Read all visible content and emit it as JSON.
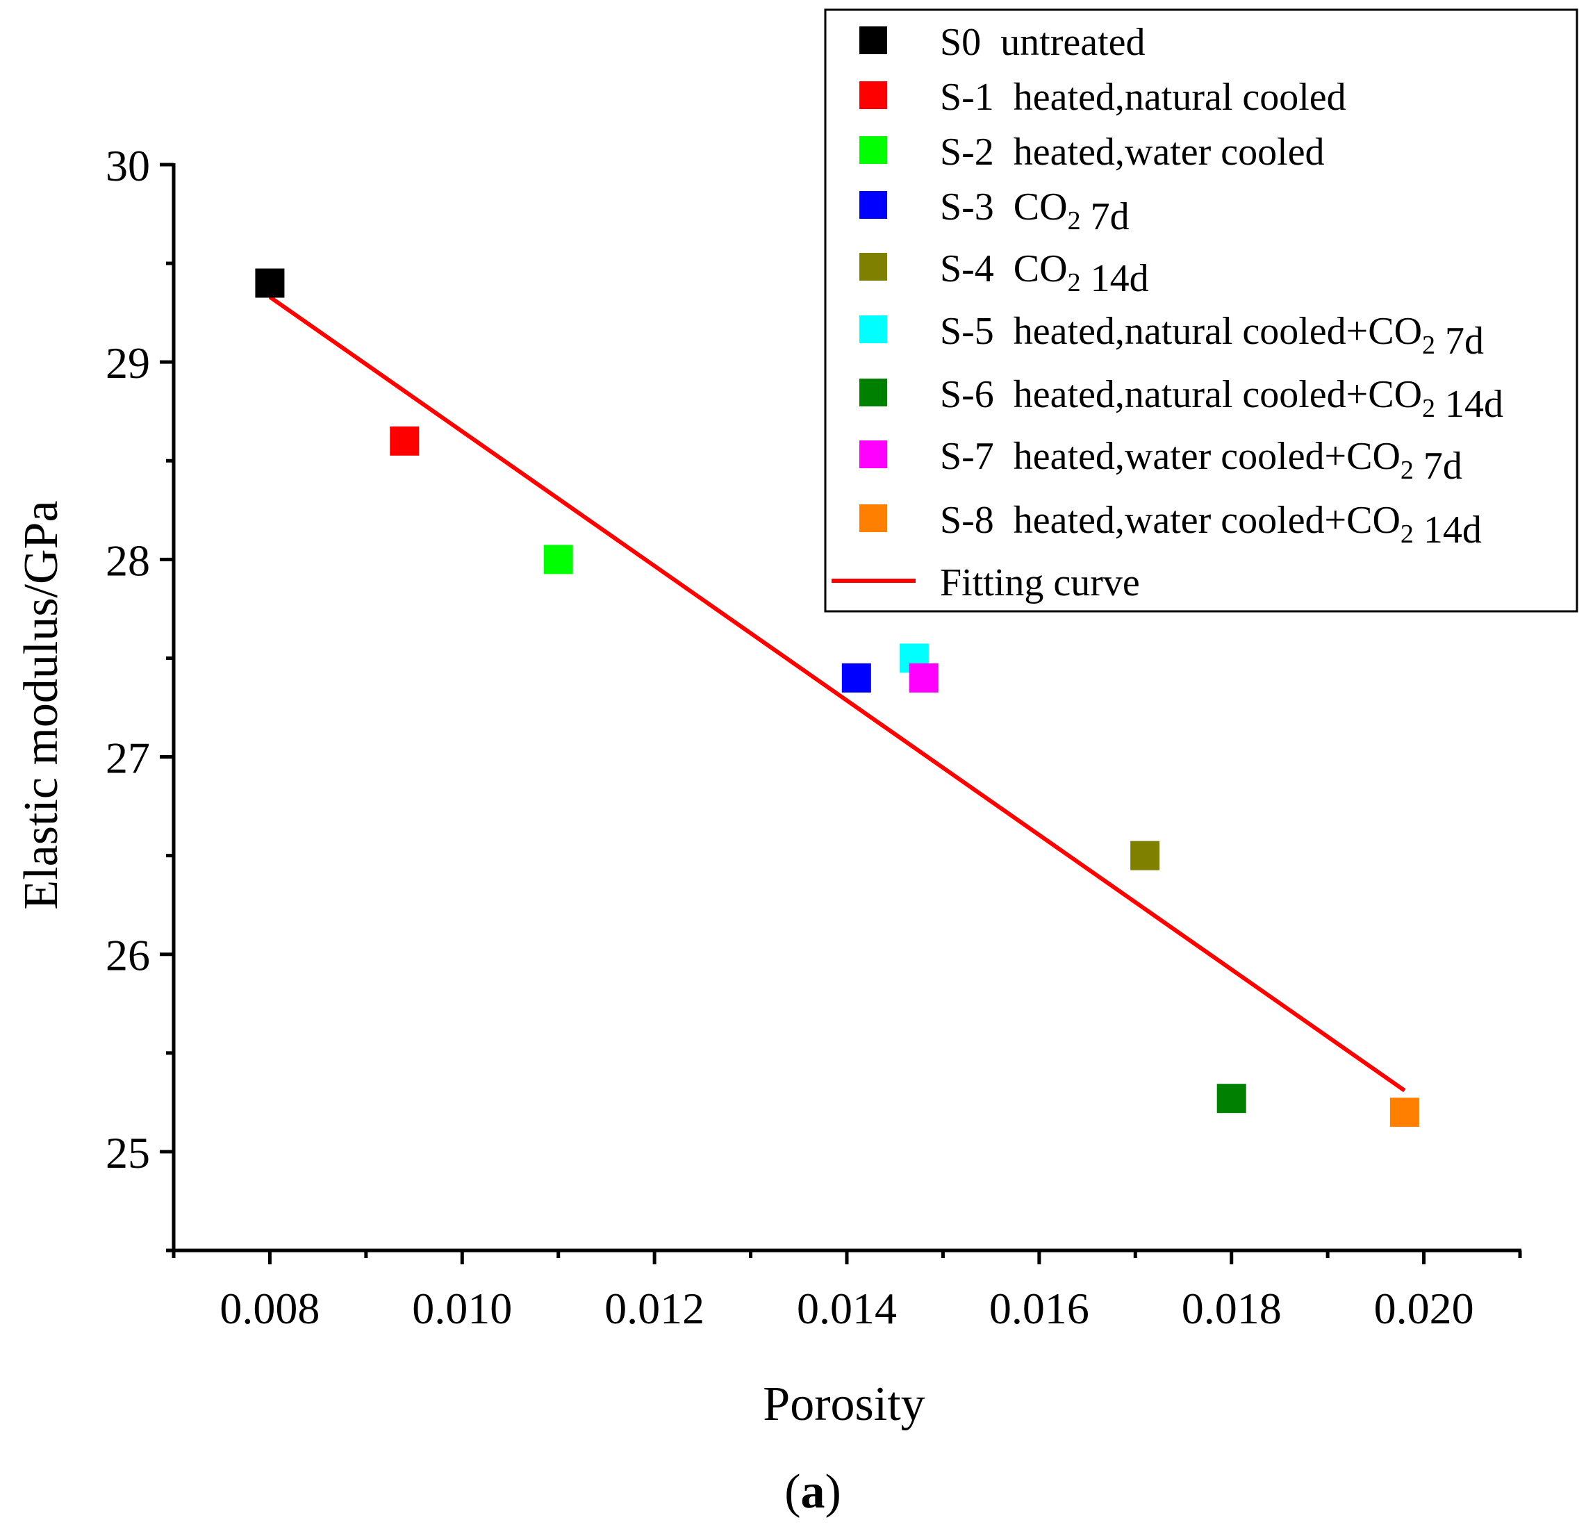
{
  "chart_data": {
    "type": "scatter",
    "title": "",
    "xlabel": "Porosity",
    "ylabel": "Elastic modulus/GPa",
    "caption_letter": "a",
    "xlim": [
      0.007,
      0.021
    ],
    "ylim": [
      24.5,
      30
    ],
    "x_ticks": [
      0.008,
      0.01,
      0.012,
      0.014,
      0.016,
      0.018,
      0.02
    ],
    "x_tick_labels": [
      "0.008",
      "0.010",
      "0.012",
      "0.014",
      "0.016",
      "0.018",
      "0.020"
    ],
    "y_ticks": [
      25,
      26,
      27,
      28,
      29,
      30
    ],
    "y_tick_labels": [
      "25",
      "26",
      "27",
      "28",
      "29",
      "30"
    ],
    "grid": false,
    "legend_position": "top-right",
    "series": [
      {
        "id": "s0",
        "label": "S0  untreated",
        "label_parts": [
          {
            "t": "S0  untreated"
          }
        ],
        "color": "#000000",
        "x": 0.008,
        "y": 29.4
      },
      {
        "id": "s1",
        "label": "S-1  heated,natural cooled",
        "label_parts": [
          {
            "t": "S-1  heated,natural cooled"
          }
        ],
        "color": "#FF0000",
        "x": 0.0094,
        "y": 28.6
      },
      {
        "id": "s2",
        "label": "S-2  heated,water cooled",
        "label_parts": [
          {
            "t": "S-2  heated,water cooled"
          }
        ],
        "color": "#00FF00",
        "x": 0.011,
        "y": 28.0
      },
      {
        "id": "s3",
        "label": "S-3  CO2 7d",
        "label_parts": [
          {
            "t": "S-3  CO"
          },
          {
            "t": "2",
            "sub": true
          },
          {
            "t": " 7d"
          }
        ],
        "color": "#0000FF",
        "x": 0.0141,
        "y": 27.4
      },
      {
        "id": "s4",
        "label": "S-4  CO2 14d",
        "label_parts": [
          {
            "t": "S-4  CO"
          },
          {
            "t": "2",
            "sub": true
          },
          {
            "t": " 14d"
          }
        ],
        "color": "#808000",
        "x": 0.0171,
        "y": 26.5
      },
      {
        "id": "s5",
        "label": "S-5  heated,natural cooled+CO2 7d",
        "label_parts": [
          {
            "t": "S-5  heated,natural cooled+CO"
          },
          {
            "t": "2",
            "sub": true
          },
          {
            "t": " 7d"
          }
        ],
        "color": "#00FFFF",
        "x": 0.0147,
        "y": 27.5
      },
      {
        "id": "s6",
        "label": "S-6  heated,natural cooled+CO2 14d",
        "label_parts": [
          {
            "t": "S-6  heated,natural cooled+CO"
          },
          {
            "t": "2",
            "sub": true
          },
          {
            "t": " 14d"
          }
        ],
        "color": "#008000",
        "x": 0.018,
        "y": 25.27
      },
      {
        "id": "s7",
        "label": "S-7  heated,water cooled+CO2 7d",
        "label_parts": [
          {
            "t": "S-7  heated,water cooled+CO"
          },
          {
            "t": "2",
            "sub": true
          },
          {
            "t": " 7d"
          }
        ],
        "color": "#FF00FF",
        "x": 0.0148,
        "y": 27.4
      },
      {
        "id": "s8",
        "label": "S-8  heated,water cooled+CO2 14d",
        "label_parts": [
          {
            "t": "S-8  heated,water cooled+CO"
          },
          {
            "t": "2",
            "sub": true
          },
          {
            "t": " 14d"
          }
        ],
        "color": "#FF8000",
        "x": 0.0198,
        "y": 25.2
      }
    ],
    "fit": {
      "label": "Fitting curve",
      "color": "#FF0000",
      "x": [
        0.008,
        0.0198
      ],
      "y": [
        29.33,
        25.31
      ]
    }
  }
}
